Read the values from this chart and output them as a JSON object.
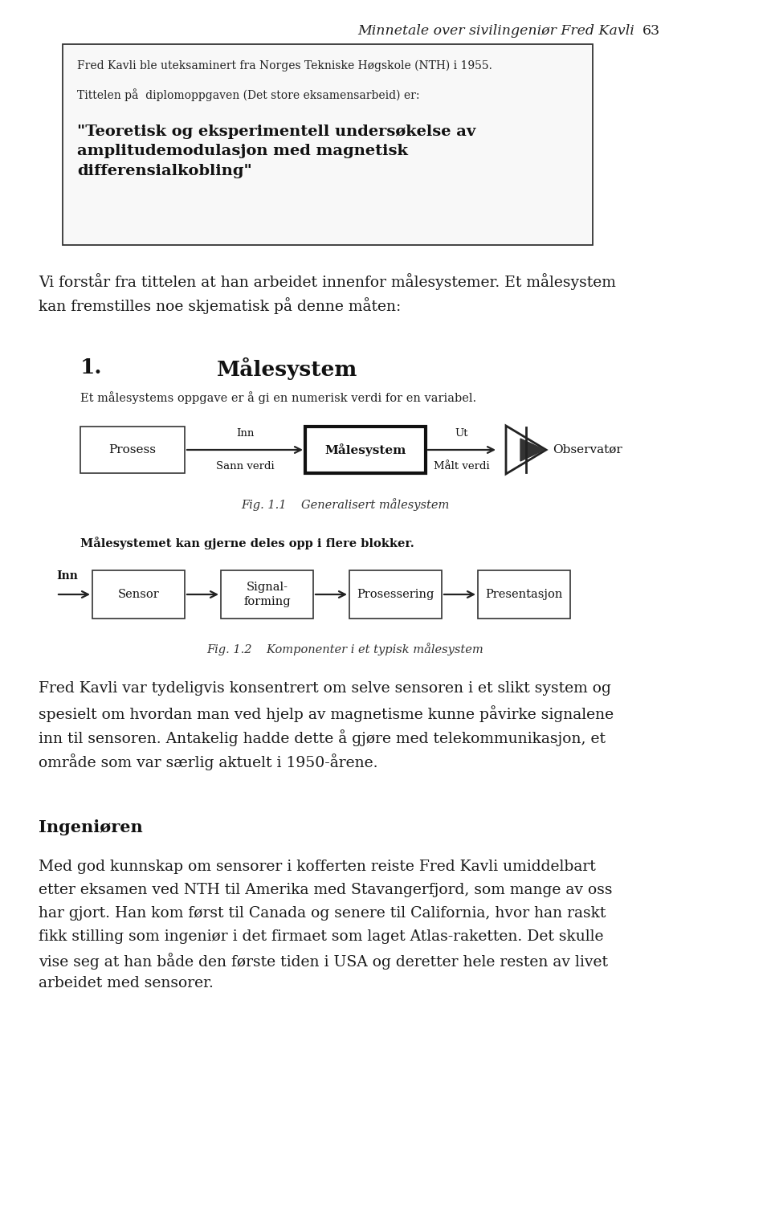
{
  "page_number": "63",
  "header_italic": "Minnetale over sivilingeniør Fred Kavli",
  "bg_color": "#ffffff",
  "text_color": "#1a1a1a",
  "box1_line1": "Fred Kavli ble uteksaminert fra Norges Tekniske Høgskole (NTH) i 1955.",
  "box1_line2": "Tittelen på  diplomoppgaven (Det store eksamensarbeid) er:",
  "box1_title": "\"Teoretisk og eksperimentell undersøkelse av\namplitudemodulasjon med magnetisk\ndifferensialkobling\"",
  "para1_line1": "Vi forstår fra tittelen at han arbeidet innenfor målesystemer. Et målesystem",
  "para1_line2": "kan fremstilles noe skjematisk på denne måten:",
  "section_num": "1.",
  "section_title": "Målesystem",
  "section_subtitle": "Et målesystems oppgave er å gi en numerisk verdi for en variabel.",
  "fig1_label_prosess": "Prosess",
  "fig1_label_malesystem": "Målesystem",
  "fig1_label_observator": "Observatør",
  "fig1_arrow1_top": "Inn",
  "fig1_arrow1_bot": "Sann verdi",
  "fig1_arrow2_top": "Ut",
  "fig1_arrow2_bot": "Målt verdi",
  "fig1_caption": "Fig. 1.1    Generalisert målesystem",
  "fig2_intro": "Målesystemet kan gjerne deles opp i flere blokker.",
  "fig2_boxes": [
    "Sensor",
    "Signal-\nforming",
    "Prosessering",
    "Presentasjon"
  ],
  "fig2_inn": "Inn",
  "fig2_caption": "Fig. 1.2    Komponenter i et typisk målesystem",
  "para2_lines": [
    "Fred Kavli var tydeligvis konsentrert om selve sensoren i et slikt system og",
    "spesielt om hvordan man ved hjelp av magnetisme kunne påvirke signalene",
    "inn til sensoren. Antakelig hadde dette å gjøre med telekommunikasjon, et",
    "område som var særlig aktuelt i 1950-årene."
  ],
  "section2_title": "Ingeniøren",
  "para3_lines": [
    "Med god kunnskap om sensorer i kofferten reiste Fred Kavli umiddelbart",
    "etter eksamen ved NTH til Amerika med Stavangerfjord, som mange av oss",
    "har gjort. Han kom først til Canada og senere til California, hvor han raskt",
    "fikk stilling som ingeniør i det firmaet som laget Atlas-raketten. Det skulle",
    "vise seg at han både den første tiden i USA og deretter hele resten av livet",
    "arbeidet med sensorer."
  ]
}
